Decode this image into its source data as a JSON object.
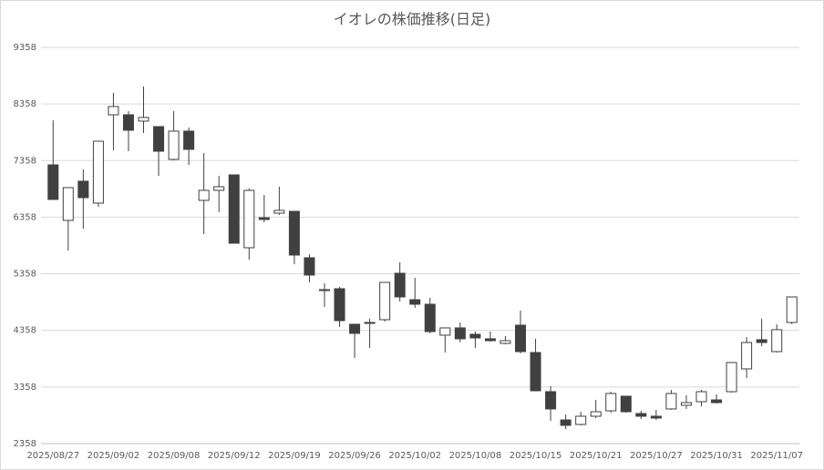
{
  "chart_data": {
    "type": "candlestick",
    "title": "イオレの株価推移(日足)",
    "categories": [
      "2025/08/27",
      null,
      null,
      null,
      "2025/09/02",
      null,
      null,
      null,
      "2025/09/08",
      null,
      null,
      null,
      "2025/09/12",
      null,
      null,
      null,
      "2025/09/19",
      null,
      null,
      null,
      "2025/09/26",
      null,
      null,
      null,
      "2025/10/02",
      null,
      null,
      null,
      "2025/10/08",
      null,
      null,
      null,
      "2025/10/15",
      null,
      null,
      null,
      "2025/10/21",
      null,
      null,
      null,
      "2025/10/27",
      null,
      null,
      null,
      "2025/10/31",
      null,
      null,
      null,
      "2025/11/07",
      null
    ],
    "open": [
      7282,
      6301,
      6993,
      6606,
      8167,
      8167,
      8055,
      7958,
      7379,
      7878,
      6655,
      6832,
      7105,
      5818,
      6349,
      6429,
      6461,
      5641,
      5078,
      5094,
      4466,
      4482,
      4547,
      5367,
      4900,
      4820,
      4273,
      4402,
      4289,
      4209,
      4128,
      4450,
      3967,
      3275,
      2776,
      2696,
      2841,
      2937,
      3195,
      2889,
      2841,
      2970,
      3034,
      3098,
      3130,
      3275,
      3678,
      4193,
      3983,
      4498
    ],
    "high": [
      8071,
      6880,
      7202,
      7700,
      8554,
      8232,
      8666,
      7958,
      8232,
      7942,
      7491,
      7089,
      7105,
      6864,
      6751,
      6896,
      6461,
      5705,
      5190,
      5126,
      4466,
      4563,
      5206,
      5560,
      5287,
      4933,
      4402,
      4498,
      4337,
      4337,
      4257,
      4707,
      4209,
      3372,
      2873,
      2921,
      3130,
      3275,
      3195,
      2937,
      2953,
      3307,
      3211,
      3307,
      3227,
      3790,
      4241,
      4563,
      4466,
      4949
    ],
    "low": [
      6671,
      5770,
      6156,
      6542,
      7539,
      7523,
      7846,
      7089,
      7363,
      7282,
      6059,
      6445,
      5898,
      5609,
      6268,
      6397,
      5528,
      5206,
      4772,
      4418,
      3871,
      4048,
      4514,
      4868,
      4755,
      4305,
      3967,
      4144,
      4048,
      4160,
      4112,
      3951,
      3291,
      2760,
      2615,
      2680,
      2809,
      2905,
      2905,
      2793,
      2776,
      2953,
      2970,
      3018,
      3066,
      3259,
      3517,
      4080,
      3967,
      4466
    ],
    "close": [
      6671,
      6880,
      6703,
      7700,
      8312,
      7894,
      8119,
      7523,
      7878,
      7556,
      6832,
      6896,
      5898,
      6832,
      6317,
      6478,
      5689,
      5335,
      5062,
      4530,
      4305,
      4498,
      5206,
      4949,
      4820,
      4337,
      4402,
      4209,
      4225,
      4176,
      4176,
      3983,
      3291,
      2970,
      2680,
      2841,
      2921,
      3243,
      2921,
      2841,
      2809,
      3243,
      3082,
      3275,
      3082,
      3790,
      4144,
      4144,
      4370,
      4949
    ],
    "up_color": "#ffffff",
    "down_color": "#404040",
    "edge_color": "#404040",
    "ylim": [
      2358,
      9358
    ],
    "yticks": [
      2358,
      3358,
      4358,
      5358,
      6358,
      7358,
      8358,
      9358
    ],
    "grid": true
  }
}
